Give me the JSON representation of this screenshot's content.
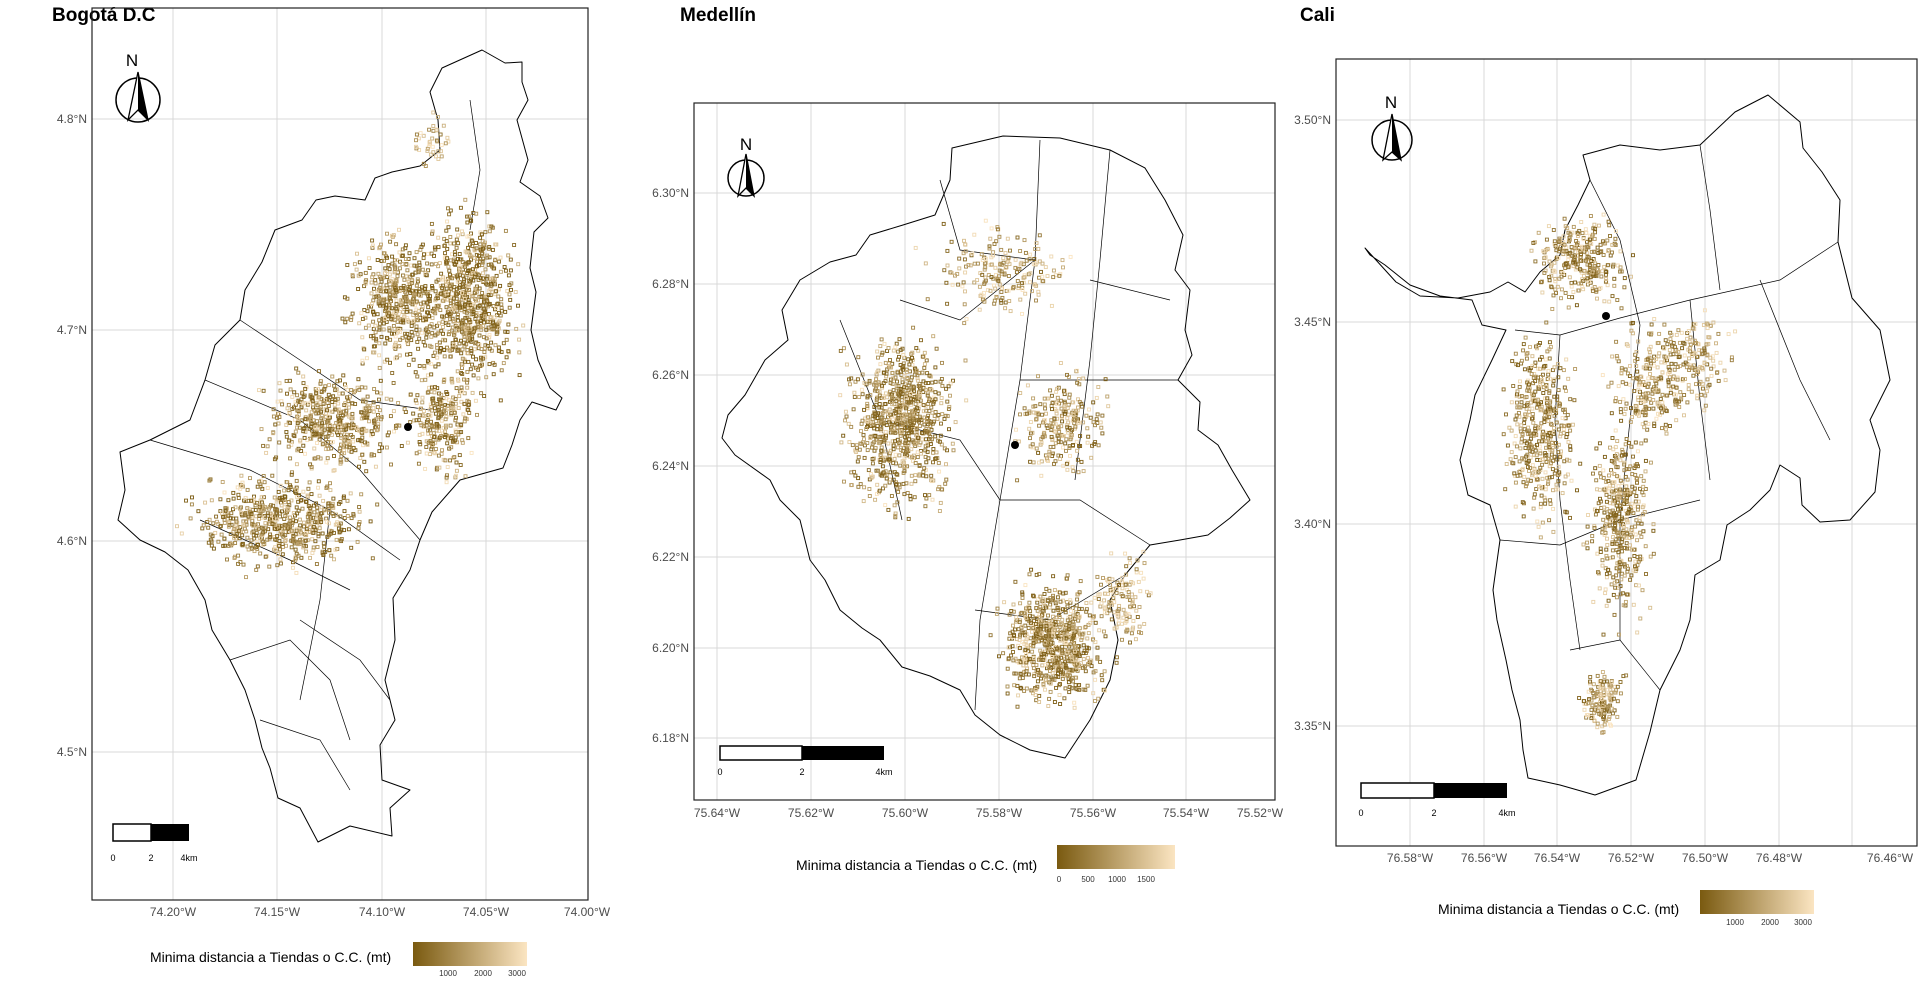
{
  "chart_data": [
    {
      "type": "map",
      "title": "Bogotá D.C",
      "x_ticks": [
        "74.20°W",
        "74.15°W",
        "74.10°W",
        "74.05°W",
        "74.00°W"
      ],
      "y_ticks": [
        "4.5°N",
        "4.6°N",
        "4.7°N",
        "4.8°N"
      ],
      "north_arrow": "N",
      "scale_bar": [
        "0",
        "2",
        "4km"
      ],
      "legend_title": "Minima distancia a Tiendas o C.C. (mt)",
      "legend_ticks": [
        "1000",
        "2000",
        "3000"
      ],
      "color_low": "#7a5a10",
      "color_high": "#fbe5c2",
      "grid": true
    },
    {
      "type": "map",
      "title": "Medellín",
      "x_ticks": [
        "75.64°W",
        "75.62°W",
        "75.60°W",
        "75.58°W",
        "75.56°W",
        "75.54°W",
        "75.52°W"
      ],
      "y_ticks": [
        "6.18°N",
        "6.20°N",
        "6.22°N",
        "6.24°N",
        "6.26°N",
        "6.28°N",
        "6.30°N"
      ],
      "north_arrow": "N",
      "scale_bar": [
        "0",
        "2",
        "4km"
      ],
      "legend_title": "Minima distancia a Tiendas o C.C. (mt)",
      "legend_ticks": [
        "0",
        "500",
        "1000",
        "1500"
      ],
      "color_low": "#7a5a10",
      "color_high": "#fbe5c2",
      "grid": true
    },
    {
      "type": "map",
      "title": "Cali",
      "x_ticks": [
        "76.58°W",
        "76.56°W",
        "76.54°W",
        "76.52°W",
        "76.50°W",
        "76.48°W",
        "76.46°W"
      ],
      "y_ticks": [
        "3.35°N",
        "3.40°N",
        "3.45°N",
        "3.50°N"
      ],
      "north_arrow": "N",
      "scale_bar": [
        "0",
        "2",
        "4km"
      ],
      "legend_title": "Minima distancia a Tiendas o C.C. (mt)",
      "legend_ticks": [
        "1000",
        "2000",
        "3000"
      ],
      "color_low": "#7a5a10",
      "color_high": "#fbe5c2",
      "grid": true
    }
  ]
}
